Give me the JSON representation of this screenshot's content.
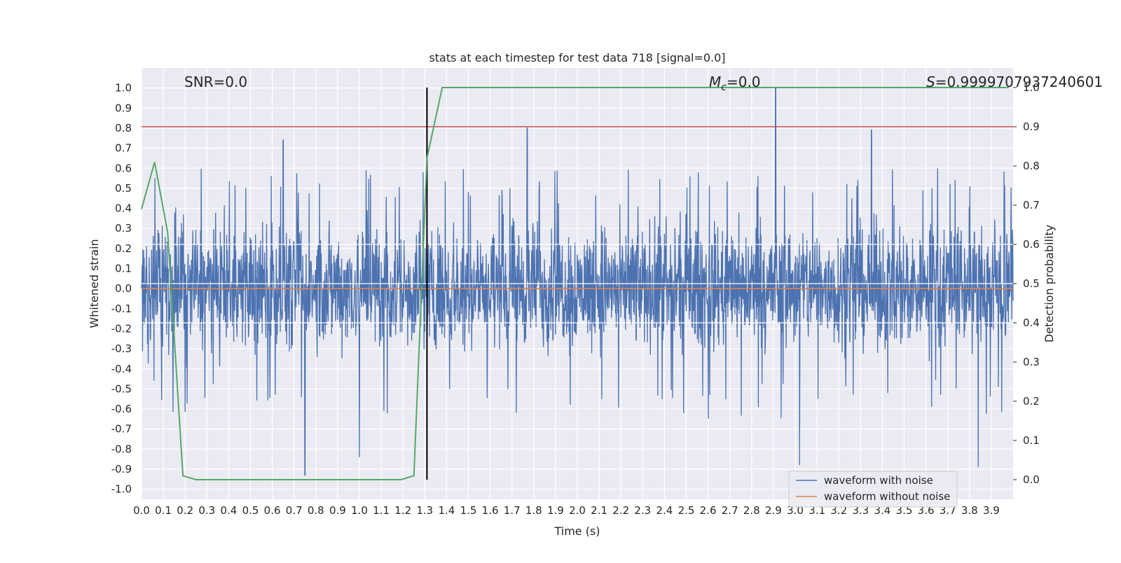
{
  "chart_data": {
    "type": "line",
    "title": "stats at each timestep for test data 718 [signal=0.0]",
    "xlabel": "Time (s)",
    "ylabel": "Whitened strain",
    "y2label": "Detection probability",
    "xlim": [
      0.0,
      4.0
    ],
    "ylim": [
      -1.05,
      1.1
    ],
    "y2lim": [
      -0.05,
      1.05
    ],
    "x_ticks": [
      "0.0",
      "0.1",
      "0.2",
      "0.3",
      "0.4",
      "0.5",
      "0.6",
      "0.7",
      "0.8",
      "0.9",
      "1.0",
      "1.1",
      "1.2",
      "1.3",
      "1.4",
      "1.5",
      "1.6",
      "1.7",
      "1.8",
      "1.9",
      "2.0",
      "2.1",
      "2.2",
      "2.3",
      "2.4",
      "2.5",
      "2.6",
      "2.7",
      "2.8",
      "2.9",
      "3.0",
      "3.1",
      "3.2",
      "3.3",
      "3.4",
      "3.5",
      "3.6",
      "3.7",
      "3.8",
      "3.9"
    ],
    "y_ticks": [
      "1.0",
      "0.9",
      "0.8",
      "0.7",
      "0.6",
      "0.5",
      "0.4",
      "0.3",
      "0.2",
      "0.1",
      "0.0",
      "-0.1",
      "-0.2",
      "-0.3",
      "-0.4",
      "-0.5",
      "-0.6",
      "-0.7",
      "-0.8",
      "-0.9",
      "-1.0"
    ],
    "y2_ticks": [
      "1.0",
      "0.9",
      "0.8",
      "0.7",
      "0.6",
      "0.5",
      "0.4",
      "0.3",
      "0.2",
      "0.1",
      "0.0"
    ],
    "grid": true,
    "legend_position": "lower-right",
    "annotations": {
      "snr": "SNR=0.0",
      "mc_symbol": "M",
      "mc_sub": "c",
      "mc_value": "=0.0",
      "s_symbol": "S",
      "s_value": "=0.9999707937240601"
    },
    "colors": {
      "background": "#eaeaf2",
      "noise": "#4c72b0",
      "clean": "#dd8452",
      "probability": "#55a868",
      "threshold": "#c44e52",
      "marker": "#000000"
    },
    "series": [
      {
        "name": "waveform with noise",
        "axis": "left",
        "style": "dense-noise",
        "amplitude_range": [
          -0.93,
          1.0
        ],
        "typical_range": [
          -0.4,
          0.45
        ],
        "spikes": [
          [
            0.65,
            0.74
          ],
          [
            0.75,
            -0.93
          ],
          [
            1.0,
            -0.84
          ],
          [
            1.77,
            0.8
          ],
          [
            2.91,
            1.0
          ],
          [
            3.02,
            -0.88
          ],
          [
            3.35,
            0.79
          ],
          [
            3.84,
            -0.89
          ]
        ]
      },
      {
        "name": "waveform without noise",
        "axis": "left",
        "x": [
          0.0,
          4.0
        ],
        "values": [
          0.0,
          0.0
        ]
      },
      {
        "name": "detection probability",
        "axis": "right",
        "x": [
          0.0,
          0.06,
          0.12,
          0.19,
          0.25,
          0.75,
          1.19,
          1.25,
          1.31,
          1.38,
          3.98
        ],
        "values": [
          0.69,
          0.81,
          0.63,
          0.01,
          0.0,
          0.0,
          0.0,
          0.01,
          0.82,
          1.0,
          1.0
        ]
      }
    ],
    "threshold": {
      "axis": "right",
      "value": 0.9
    },
    "marker_time": 1.31
  }
}
